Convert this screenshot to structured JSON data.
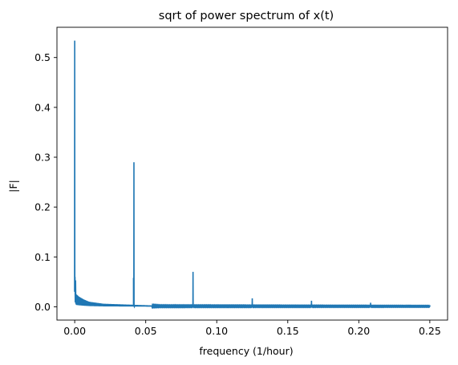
{
  "chart_data": {
    "type": "line",
    "title": "sqrt of power spectrum of x(t)",
    "xlabel": "frequency (1/hour)",
    "ylabel": "|F|",
    "xlim": [
      -0.0125,
      0.2625
    ],
    "ylim": [
      -0.0267,
      0.5607
    ],
    "x_ticks": [
      0.0,
      0.05,
      0.1,
      0.15,
      0.2,
      0.25
    ],
    "x_tick_labels": [
      "0.00",
      "0.05",
      "0.10",
      "0.15",
      "0.20",
      "0.25"
    ],
    "y_ticks": [
      0.0,
      0.1,
      0.2,
      0.3,
      0.4,
      0.5
    ],
    "y_tick_labels": [
      "0.0",
      "0.1",
      "0.2",
      "0.3",
      "0.4",
      "0.5"
    ],
    "line_color": "#1f77b4",
    "grid": false,
    "peaks": [
      {
        "x": 0.0,
        "y": 0.534
      },
      {
        "x": 0.0417,
        "y": 0.29
      },
      {
        "x": 0.0833,
        "y": 0.07
      },
      {
        "x": 0.125,
        "y": 0.017
      },
      {
        "x": 0.1667,
        "y": 0.012
      },
      {
        "x": 0.2083,
        "y": 0.008
      },
      {
        "x": 0.25,
        "y": 0.003
      }
    ],
    "baseline_envelope": [
      {
        "x": 0.0005,
        "y": 0.06
      },
      {
        "x": 0.001,
        "y": 0.025
      },
      {
        "x": 0.003,
        "y": 0.02
      },
      {
        "x": 0.006,
        "y": 0.015
      },
      {
        "x": 0.01,
        "y": 0.01
      },
      {
        "x": 0.02,
        "y": 0.006
      },
      {
        "x": 0.03,
        "y": 0.005
      },
      {
        "x": 0.04,
        "y": 0.004
      },
      {
        "x": 0.05,
        "y": 0.003
      },
      {
        "x": 0.06,
        "y": 0.002
      },
      {
        "x": 0.25,
        "y": 0.0015
      }
    ]
  }
}
